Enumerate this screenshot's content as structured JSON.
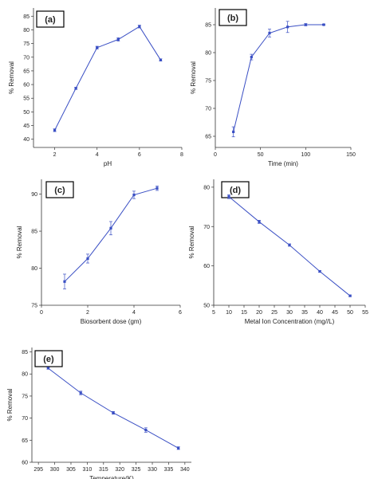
{
  "chart_data": [
    {
      "type": "line",
      "panel_label": "(a)",
      "xlabel": "pH",
      "ylabel": "% Removal",
      "xlim": [
        1,
        8
      ],
      "ylim": [
        37,
        88
      ],
      "xticks": [
        2,
        4,
        6,
        8
      ],
      "yticks": [
        40,
        45,
        50,
        55,
        60,
        65,
        70,
        75,
        80,
        85
      ],
      "grid": false,
      "color": "#3a4fc4",
      "x": [
        2,
        3,
        4,
        5,
        6,
        7
      ],
      "y": [
        43.3,
        58.6,
        73.5,
        76.5,
        81.2,
        69.0
      ],
      "err": [
        0.5,
        0.4,
        0.5,
        0.6,
        0.5,
        0.4
      ]
    },
    {
      "type": "line",
      "panel_label": "(b)",
      "xlabel": "Time (min)",
      "ylabel": "% Removal",
      "xlim": [
        0,
        150
      ],
      "ylim": [
        63,
        88
      ],
      "xticks": [
        0,
        50,
        100,
        150
      ],
      "yticks": [
        65,
        70,
        75,
        80,
        85
      ],
      "grid": false,
      "color": "#3a4fc4",
      "x": [
        20,
        40,
        60,
        80,
        100,
        120
      ],
      "y": [
        65.8,
        79.2,
        83.5,
        84.6,
        85.0,
        85.0
      ],
      "err": [
        0.9,
        0.5,
        0.7,
        1.0,
        0.2,
        0.1
      ]
    },
    {
      "type": "line",
      "panel_label": "(c)",
      "xlabel": "Biosorbent dose (gm)",
      "ylabel": "% Removal",
      "xlim": [
        0,
        6
      ],
      "ylim": [
        75,
        92
      ],
      "xticks": [
        0,
        2,
        4,
        6
      ],
      "yticks": [
        75,
        80,
        85,
        90
      ],
      "grid": false,
      "color": "#3a4fc4",
      "x": [
        1,
        2,
        3,
        4,
        5
      ],
      "y": [
        78.2,
        81.3,
        85.4,
        89.9,
        90.8
      ],
      "err": [
        1.0,
        0.6,
        0.9,
        0.5,
        0.3
      ]
    },
    {
      "type": "line",
      "panel_label": "(d)",
      "xlabel": "Metal Ion Concentration (mg//L)",
      "ylabel": "% Removal",
      "xlim": [
        5,
        55
      ],
      "ylim": [
        50,
        82
      ],
      "xticks": [
        5,
        10,
        15,
        20,
        25,
        30,
        35,
        40,
        45,
        50,
        55
      ],
      "yticks": [
        50,
        60,
        70,
        80
      ],
      "grid": false,
      "color": "#3a4fc4",
      "x": [
        10,
        20,
        30,
        40,
        50
      ],
      "y": [
        77.6,
        71.2,
        65.3,
        58.6,
        52.4
      ],
      "err": [
        0.5,
        0.4,
        0.3,
        0.2,
        0.2
      ]
    },
    {
      "type": "line",
      "panel_label": "(e)",
      "xlabel": "Temperature(K)",
      "ylabel": "% Removal",
      "xlim": [
        293,
        342
      ],
      "ylim": [
        60,
        86
      ],
      "xticks": [
        295,
        300,
        305,
        310,
        315,
        320,
        325,
        330,
        335,
        340
      ],
      "yticks": [
        60,
        65,
        70,
        75,
        80,
        85
      ],
      "grid": false,
      "color": "#3a4fc4",
      "x": [
        298,
        308,
        318,
        328,
        338
      ],
      "y": [
        81.3,
        75.7,
        71.2,
        67.3,
        63.2
      ],
      "err": [
        0.2,
        0.4,
        0.3,
        0.5,
        0.3
      ]
    }
  ]
}
